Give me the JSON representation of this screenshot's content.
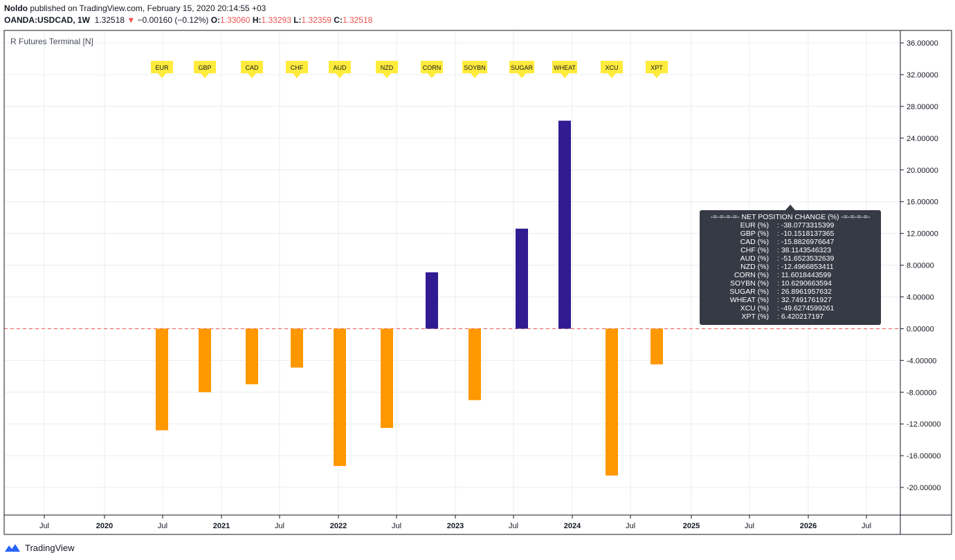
{
  "header": {
    "author": "Noldo",
    "published_text": "published on TradingView.com, February 15, 2020 20:14:55 +03",
    "symbol": "OANDA:USDCAD, 1W",
    "price": "1.32518",
    "change": "−0.00160 (−0.12%)",
    "o_label": "O:",
    "o_val": "1.33060",
    "h_label": "H:",
    "h_val": "1.33293",
    "l_label": "L:",
    "l_val": "1.32359",
    "c_label": "C:",
    "c_val": "1.32518"
  },
  "pane_label": "R Futures Terminal [N]",
  "chart_data": {
    "type": "bar",
    "ylim": [
      -23.5,
      37.5
    ],
    "y_ticks": [
      "36.00000",
      "32.00000",
      "28.00000",
      "24.00000",
      "20.00000",
      "16.00000",
      "12.00000",
      "8.00000",
      "4.00000",
      "0.00000",
      "-4.00000",
      "-8.00000",
      "-12.00000",
      "-16.00000",
      "-20.00000"
    ],
    "y_tick_values": [
      36,
      32,
      28,
      24,
      20,
      16,
      12,
      8,
      4,
      0,
      -4,
      -8,
      -12,
      -16,
      -20
    ],
    "x_ticks": [
      "Jul",
      "2020",
      "Jul",
      "2021",
      "Jul",
      "2022",
      "Jul",
      "2023",
      "Jul",
      "2024",
      "Jul",
      "2025",
      "Jul",
      "2026",
      "Jul"
    ],
    "x_ticks_major": [
      false,
      true,
      false,
      true,
      false,
      true,
      false,
      true,
      false,
      true,
      false,
      true,
      false,
      true,
      false
    ],
    "zero_line": 0,
    "categories": [
      "EUR",
      "GBP",
      "CAD",
      "CHF",
      "AUD",
      "NZD",
      "CORN",
      "SOYBN",
      "SUGAR",
      "WHEAT",
      "XCU",
      "XPT"
    ],
    "values": [
      -12.8,
      -8.0,
      -7.0,
      -4.9,
      -17.3,
      -12.5,
      7.1,
      -9.0,
      12.6,
      26.2,
      -18.5,
      -4.5
    ],
    "colors": {
      "positive": "#311b92",
      "negative": "#ff9800",
      "flag": "#ffeb3b",
      "zero_line": "#ef5350",
      "grid": "#e8ecf0"
    }
  },
  "info_box": {
    "title": "-=-=-=-=- NET POSITION CHANGE (%) -=-=-=-=-",
    "rows": [
      {
        "k": "EUR (%)",
        "v": ": -38.0773315399"
      },
      {
        "k": "GBP (%)",
        "v": ": -10.1518137365"
      },
      {
        "k": "CAD (%)",
        "v": ": -15.8826976647"
      },
      {
        "k": "CHF (%)",
        "v": ": 38.1143546323"
      },
      {
        "k": "AUD (%)",
        "v": ": -51.6523532639"
      },
      {
        "k": "NZD (%)",
        "v": ": -12.4966853411"
      },
      {
        "k": "CORN (%)",
        "v": ": 11.6018443599"
      },
      {
        "k": "SOYBN (%)",
        "v": ": 10.6290663594"
      },
      {
        "k": "SUGAR (%)",
        "v": ": 26.8961957632"
      },
      {
        "k": "WHEAT (%)",
        "v": ": 32.7491761927"
      },
      {
        "k": "XCU (%)",
        "v": ": -49.6274599261"
      },
      {
        "k": "XPT (%)",
        "v": ": 6.420217197"
      }
    ]
  },
  "footer": {
    "brand": "TradingView",
    "icon": "tradingview-cloud-icon"
  }
}
